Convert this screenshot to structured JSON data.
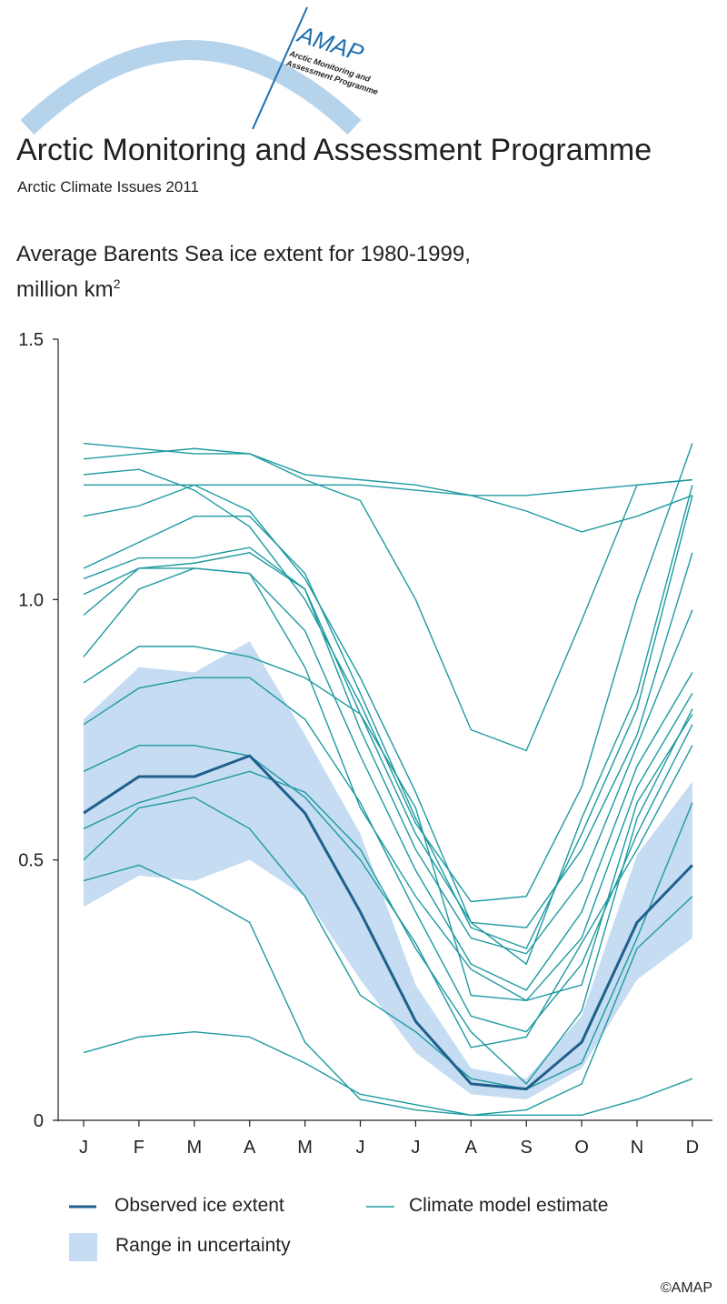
{
  "header": {
    "org_title": "Arctic Monitoring and Assessment Programme",
    "subtitle": "Arctic Climate Issues 2011"
  },
  "logo": {
    "acronym": "AMAP",
    "line1": "Arctic Monitoring and",
    "line2": "Assessment Programme"
  },
  "chart_data": {
    "type": "line",
    "title_line1": "Average Barents Sea ice extent for 1980-1999,",
    "title_line2": "million km",
    "title_sup": "2",
    "categories": [
      "J",
      "F",
      "M",
      "A",
      "M",
      "J",
      "J",
      "A",
      "S",
      "O",
      "N",
      "D"
    ],
    "y_ticks": [
      "0",
      "0.5",
      "1.0",
      "1.5"
    ],
    "y_tick_values": [
      0,
      0.5,
      1.0,
      1.5
    ],
    "ylim": [
      0,
      1.5
    ],
    "observed": {
      "name": "Observed ice extent",
      "values": [
        0.59,
        0.66,
        0.66,
        0.7,
        0.59,
        0.4,
        0.19,
        0.07,
        0.06,
        0.15,
        0.38,
        0.49
      ]
    },
    "uncertainty": {
      "name": "Range in uncertainty",
      "upper": [
        0.77,
        0.87,
        0.86,
        0.92,
        0.74,
        0.55,
        0.26,
        0.1,
        0.08,
        0.2,
        0.51,
        0.65
      ],
      "lower": [
        0.41,
        0.47,
        0.46,
        0.5,
        0.43,
        0.27,
        0.13,
        0.05,
        0.04,
        0.1,
        0.27,
        0.35
      ]
    },
    "model_series_name": "Climate model estimate",
    "models": [
      [
        1.3,
        1.29,
        1.28,
        1.28,
        1.23,
        1.19,
        1.0,
        0.75,
        0.71,
        0.96,
        1.22,
        1.23
      ],
      [
        1.27,
        1.28,
        1.29,
        1.28,
        1.24,
        1.23,
        1.22,
        1.2,
        1.2,
        1.21,
        1.22,
        1.23
      ],
      [
        1.22,
        1.22,
        1.22,
        1.22,
        1.22,
        1.22,
        1.21,
        1.2,
        1.17,
        1.13,
        1.16,
        1.2
      ],
      [
        1.24,
        1.25,
        1.21,
        1.14,
        1.0,
        0.8,
        0.57,
        0.42,
        0.43,
        0.64,
        1.0,
        1.3
      ],
      [
        1.16,
        1.18,
        1.22,
        1.17,
        1.04,
        0.85,
        0.63,
        0.38,
        0.3,
        0.58,
        0.82,
        1.22
      ],
      [
        1.06,
        1.11,
        1.16,
        1.16,
        1.05,
        0.82,
        0.58,
        0.37,
        0.33,
        0.55,
        0.79,
        1.2
      ],
      [
        1.04,
        1.08,
        1.08,
        1.1,
        1.02,
        0.78,
        0.55,
        0.38,
        0.37,
        0.52,
        0.74,
        1.09
      ],
      [
        1.01,
        1.06,
        1.07,
        1.09,
        1.02,
        0.75,
        0.52,
        0.35,
        0.32,
        0.46,
        0.72,
        0.98
      ],
      [
        0.97,
        1.06,
        1.06,
        1.05,
        0.94,
        0.7,
        0.48,
        0.3,
        0.25,
        0.4,
        0.68,
        0.86
      ],
      [
        0.89,
        1.02,
        1.06,
        1.05,
        0.87,
        0.6,
        0.43,
        0.29,
        0.23,
        0.35,
        0.64,
        0.82
      ],
      [
        0.84,
        0.91,
        0.91,
        0.89,
        0.85,
        0.78,
        0.6,
        0.24,
        0.23,
        0.26,
        0.61,
        0.78
      ],
      [
        0.76,
        0.83,
        0.85,
        0.85,
        0.77,
        0.61,
        0.4,
        0.2,
        0.17,
        0.3,
        0.55,
        0.76
      ],
      [
        0.67,
        0.72,
        0.72,
        0.7,
        0.62,
        0.5,
        0.34,
        0.14,
        0.16,
        0.34,
        0.52,
        0.72
      ],
      [
        0.56,
        0.61,
        0.64,
        0.67,
        0.63,
        0.52,
        0.33,
        0.17,
        0.07,
        0.21,
        0.58,
        0.79
      ],
      [
        0.5,
        0.6,
        0.62,
        0.56,
        0.43,
        0.24,
        0.17,
        0.08,
        0.06,
        0.11,
        0.35,
        0.61
      ],
      [
        0.46,
        0.49,
        0.44,
        0.38,
        0.15,
        0.04,
        0.02,
        0.01,
        0.02,
        0.07,
        0.33,
        0.43
      ],
      [
        0.13,
        0.16,
        0.17,
        0.16,
        0.11,
        0.05,
        0.03,
        0.01,
        0.01,
        0.01,
        0.04,
        0.08
      ]
    ],
    "legend": {
      "observed_label": "Observed ice extent",
      "model_label": "Climate model estimate",
      "uncertainty_label": "Range in uncertainty"
    },
    "colors": {
      "observed": "#1f5f8b",
      "model": "#1e9aa0",
      "uncertainty": "#c5dcf2",
      "axis": "#231f20"
    }
  },
  "footer": {
    "copyright": "©AMAP"
  }
}
